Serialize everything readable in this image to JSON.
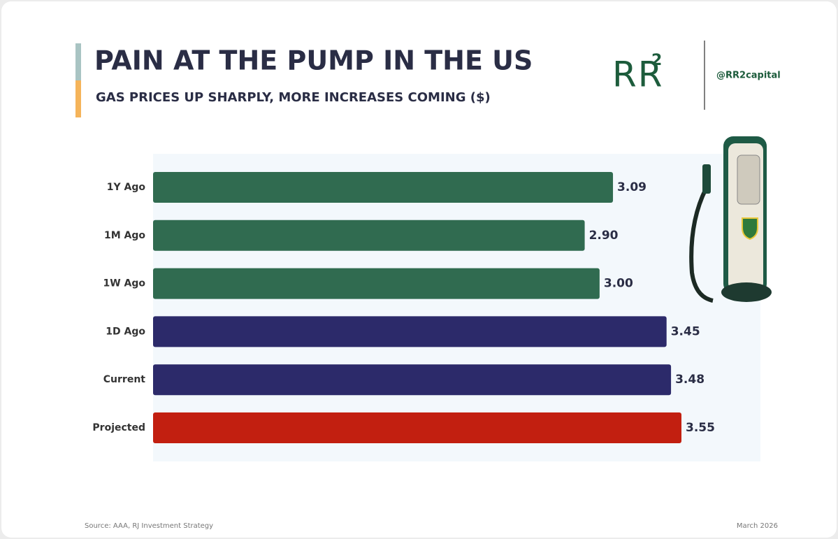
{
  "chart_data": {
    "type": "bar",
    "orientation": "horizontal",
    "title": "PAIN AT THE PUMP IN THE US",
    "subtitle": "GAS PRICES UP SHARPLY, MORE INCREASES COMING ($)",
    "categories": [
      "1Y Ago",
      "1M Ago",
      "1W Ago",
      "1D Ago",
      "Current",
      "Projected"
    ],
    "values": [
      3.09,
      2.9,
      3.0,
      3.45,
      3.48,
      3.55
    ],
    "value_labels": [
      "3.09",
      "2.90",
      "3.00",
      "3.45",
      "3.48",
      "3.55"
    ],
    "colors": [
      "#306b50",
      "#306b50",
      "#306b50",
      "#2c2a6a",
      "#2c2a6a",
      "#c21f10"
    ],
    "source": "Source: AAA, RJ Investment Strategy",
    "date": "March 2026"
  },
  "logo": {
    "letters": "RR",
    "superscript": "2",
    "handle": "@RR2capital"
  }
}
